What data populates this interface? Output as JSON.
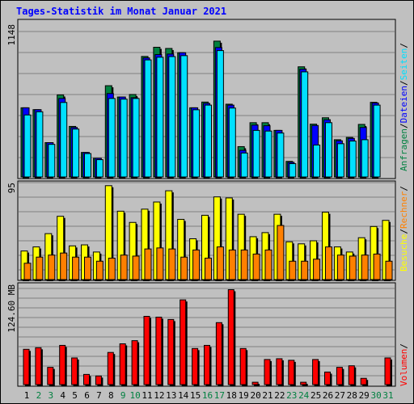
{
  "chart_data": {
    "title": "Tages-Statistik im Monat Januar 2021",
    "days": [
      "1",
      "2",
      "3",
      "4",
      "5",
      "6",
      "7",
      "8",
      "9",
      "10",
      "11",
      "12",
      "13",
      "14",
      "15",
      "16",
      "17",
      "18",
      "19",
      "20",
      "21",
      "22",
      "23",
      "24",
      "25",
      "26",
      "27",
      "28",
      "29",
      "30",
      "31"
    ],
    "weekend_days": [
      "2",
      "3",
      "9",
      "10",
      "16",
      "17",
      "23",
      "24",
      "30",
      "31"
    ],
    "colors": {
      "title": "#0000ff",
      "day_label": "#000000",
      "weekend_label": "#008040",
      "anfragen": "#008040",
      "dateien": "#0000ff",
      "seiten": "#00e0ff",
      "besuche": "#ffff00",
      "rechner": "#ff8000",
      "volumen": "#ff0000"
    },
    "panels": [
      {
        "id": "top",
        "type": "bar",
        "ylabel_max": "1148",
        "ylim": [
          0,
          1148
        ],
        "legend": [
          {
            "label": "Anfragen",
            "color": "#008040"
          },
          {
            "label": "/",
            "color": "#000000"
          },
          {
            "label": "Dateien",
            "color": "#0000ff"
          },
          {
            "label": "/",
            "color": "#000000"
          },
          {
            "label": "Seiten",
            "color": "#00e0ff"
          },
          {
            "label": "/",
            "color": "#000000"
          }
        ],
        "series": [
          {
            "name": "Anfragen",
            "values": [
              520,
              506,
              258,
              617,
              380,
              184,
              140,
              686,
              601,
              620,
              906,
              975,
              966,
              934,
              520,
              563,
              1021,
              547,
              228,
              408,
              408,
              350,
              117,
              828,
              397,
              445,
              280,
              297,
              395,
              561,
              0
            ]
          },
          {
            "name": "Dateien",
            "values": [
              520,
              506,
              258,
              590,
              372,
              184,
              140,
              627,
              601,
              596,
              895,
              920,
              924,
              934,
              520,
              553,
              973,
              540,
              200,
              390,
              385,
              350,
              110,
              810,
              387,
              430,
              272,
              290,
              372,
              556,
              0
            ]
          },
          {
            "name": "Seiten",
            "values": [
              466,
              490,
              245,
              560,
              360,
              176,
              130,
              590,
              585,
              590,
              880,
              900,
              905,
              912,
              505,
              540,
              950,
              518,
              180,
              350,
              345,
              330,
              100,
              790,
              240,
              408,
              250,
              270,
              280,
              540,
              0
            ]
          }
        ]
      },
      {
        "id": "middle",
        "type": "bar",
        "ylabel_max": "95",
        "ylim": [
          0,
          95
        ],
        "legend": [
          {
            "label": "Besuche",
            "color": "#ffff00"
          },
          {
            "label": "/",
            "color": "#000000"
          },
          {
            "label": "Rechner",
            "color": "#ff8000"
          },
          {
            "label": "/",
            "color": "#000000"
          }
        ],
        "series": [
          {
            "name": "Besuche",
            "values": [
              28,
              32,
              45,
              62,
              33,
              34,
              27,
              92,
              67,
              56,
              69,
              76,
              87,
              59,
              40,
              63,
              81,
              80,
              64,
              42,
              46,
              64,
              37,
              35,
              38,
              66,
              32,
              27,
              41,
              52,
              58
            ]
          },
          {
            "name": "Rechner",
            "values": [
              16,
              22,
              24,
              26,
              22,
              22,
              18,
              21,
              24,
              23,
              30,
              31,
              30,
              22,
              29,
              21,
              32,
              29,
              29,
              25,
              29,
              53,
              18,
              18,
              20,
              32,
              24,
              23,
              24,
              25,
              18
            ]
          }
        ]
      },
      {
        "id": "bottom",
        "type": "bar",
        "ylabel_max": "124.60 MB",
        "ylim": [
          0,
          124.6
        ],
        "legend": [
          {
            "label": "Volumen",
            "color": "#ff0000"
          },
          {
            "label": "/",
            "color": "#000000"
          }
        ],
        "series": [
          {
            "name": "Volumen",
            "values": [
              45,
              47,
              22,
              50,
              34,
              13,
              11,
              41,
              52,
              56,
              87,
              86,
              83,
              108,
              46,
              50,
              79,
              121,
              46,
              3,
              32,
              33,
              31,
              3,
              32,
              16,
              22,
              24,
              8,
              0,
              34
            ]
          }
        ]
      }
    ]
  }
}
